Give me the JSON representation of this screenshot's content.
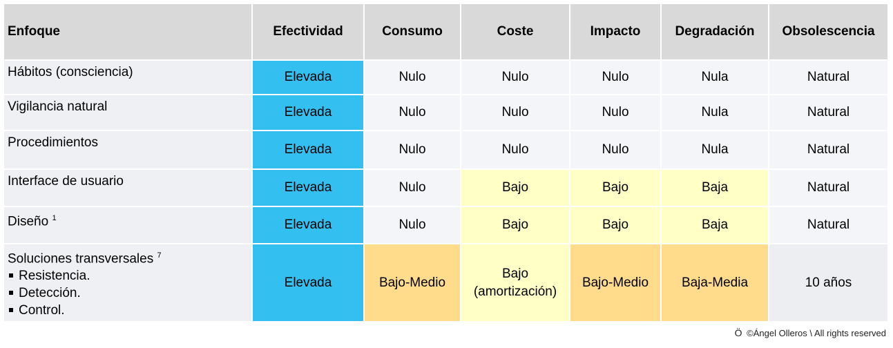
{
  "headers": [
    "Enfoque",
    "Efectividad",
    "Consumo",
    "Coste",
    "Impacto",
    "Degradación",
    "Obsolescencia"
  ],
  "rows": [
    {
      "label": "Hábitos (consciencia)",
      "sup": "",
      "values": [
        "Elevada",
        "Nulo",
        "Nulo",
        "Nulo",
        "Nula",
        "Natural"
      ]
    },
    {
      "label": "Vigilancia natural",
      "sup": "",
      "values": [
        "Elevada",
        "Nulo",
        "Nulo",
        "Nulo",
        "Nula",
        "Natural"
      ]
    },
    {
      "label": "Procedimientos",
      "sup": "",
      "values": [
        "Elevada",
        "Nulo",
        "Nulo",
        "Nulo",
        "Nula",
        "Natural"
      ]
    },
    {
      "label": "Interface de usuario",
      "sup": "",
      "values": [
        "Elevada",
        "Nulo",
        "Bajo",
        "Bajo",
        "Baja",
        "Natural"
      ]
    },
    {
      "label": "Diseño",
      "sup": "1",
      "values": [
        "Elevada",
        "Nulo",
        "Bajo",
        "Bajo",
        "Baja",
        "Natural"
      ]
    },
    {
      "label": "Soluciones transversales",
      "sup": "7",
      "bullets": [
        "Resistencia.",
        "Detección.",
        "Control."
      ],
      "values": [
        "Elevada",
        "Bajo-Medio",
        "Bajo",
        "Bajo-Medio",
        "Baja-Media",
        "10 años"
      ],
      "coste_line2": "(amortización)"
    }
  ],
  "colors": {
    "efectividad": "#33bff0",
    "neutral": "#f3f5f8",
    "low": "#ffffc6",
    "medium": "#fedc8c",
    "header": "#d9d9d9"
  },
  "copyright": {
    "logo": "Ö",
    "text": "©Ángel Olleros",
    "separator": "\\",
    "rights": "All rights reserved"
  }
}
